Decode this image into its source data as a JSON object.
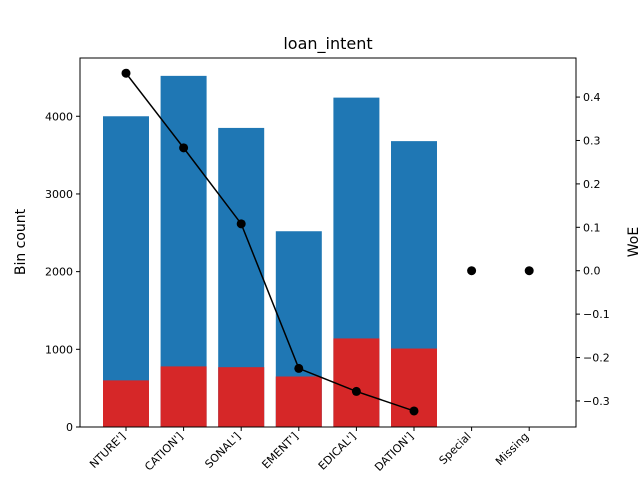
{
  "chart_data": {
    "type": "bar",
    "title": "loan_intent",
    "ylabel": "Bin count",
    "y2label": "WoE",
    "categories": [
      "NTURE']",
      "CATION']",
      "SONAL']",
      "EMENT']",
      "EDICAL']",
      "DATION']",
      "Special",
      "Missing"
    ],
    "ylim": [
      0,
      4750
    ],
    "y2lim": [
      -0.36,
      0.49
    ],
    "yticks": [
      0,
      1000,
      2000,
      3000,
      4000
    ],
    "y2ticks": [
      -0.3,
      -0.2,
      -0.1,
      0.0,
      0.1,
      0.2,
      0.3,
      0.4
    ],
    "y2tick_labels": [
      "−0.3",
      "−0.2",
      "−0.1",
      "0.0",
      "0.1",
      "0.2",
      "0.3",
      "0.4"
    ],
    "series": [
      {
        "values": [
          4000,
          4520,
          3850,
          2520,
          4240,
          3680,
          0,
          0
        ],
        "color": "#1f77b4"
      },
      {
        "values": [
          600,
          780,
          770,
          650,
          1140,
          1010,
          0,
          0
        ],
        "color": "#d62728"
      }
    ],
    "woe": {
      "values": [
        0.455,
        0.283,
        0.108,
        -0.225,
        -0.278,
        -0.323,
        0.0,
        0.0
      ],
      "connected_count": 6,
      "color": "#000000"
    },
    "grid": false
  }
}
